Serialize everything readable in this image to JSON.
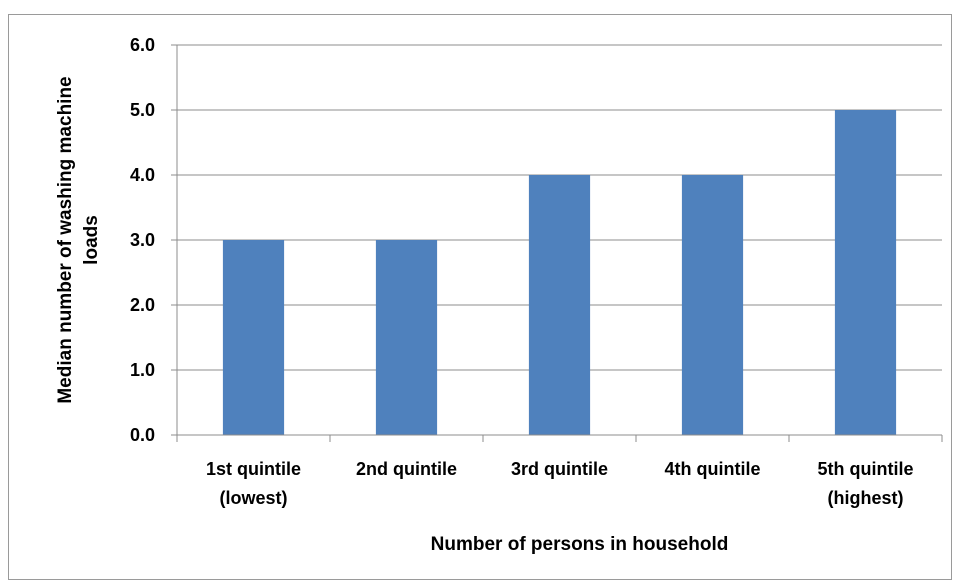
{
  "chart_data": {
    "type": "bar",
    "title": "",
    "xlabel": "Number of persons in household",
    "ylabel_lines": [
      "Median number of washing machine",
      "loads"
    ],
    "categories": [
      [
        "1st quintile",
        "(lowest)"
      ],
      [
        "2nd quintile"
      ],
      [
        "3rd quintile"
      ],
      [
        "4th quintile"
      ],
      [
        "5th quintile",
        "(highest)"
      ]
    ],
    "values": [
      3.0,
      3.0,
      4.0,
      4.0,
      5.0
    ],
    "ylim": [
      0,
      6
    ],
    "yticks": [
      "0.0",
      "1.0",
      "2.0",
      "3.0",
      "4.0",
      "5.0",
      "6.0"
    ],
    "ytick_values": [
      0,
      1,
      2,
      3,
      4,
      5,
      6
    ],
    "grid": true,
    "legend": "none",
    "colors": {
      "bar": "#4f81bd",
      "grid": "#8c8c8c"
    }
  }
}
